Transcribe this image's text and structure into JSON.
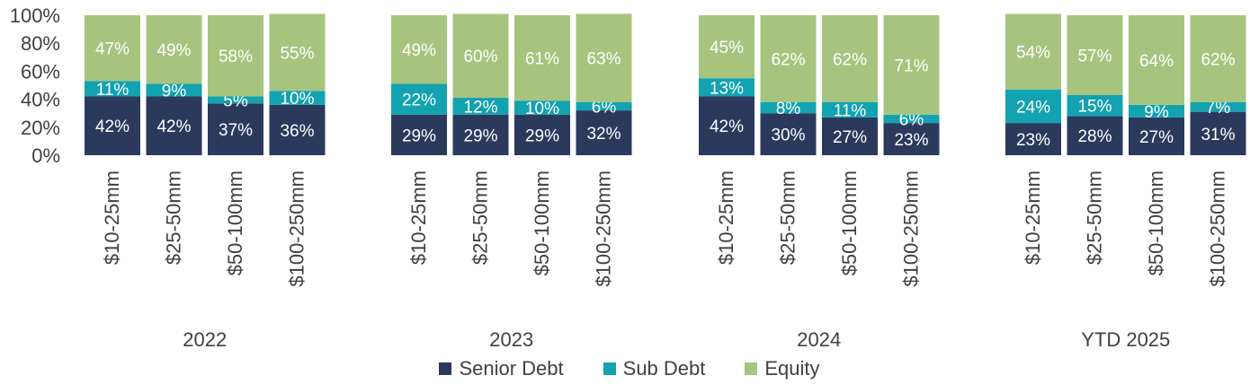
{
  "chart_data": {
    "type": "bar",
    "stacked": true,
    "groups": [
      "2022",
      "2023",
      "2024",
      "YTD 2025"
    ],
    "categories": [
      "$10-25mm",
      "$25-50mm",
      "$50-100mm",
      "$100-250mm"
    ],
    "series": [
      {
        "name": "Senior Debt",
        "color": "#2b3a5c",
        "values": [
          [
            42,
            42,
            37,
            36
          ],
          [
            29,
            29,
            29,
            32
          ],
          [
            42,
            30,
            27,
            23
          ],
          [
            23,
            28,
            27,
            31
          ]
        ]
      },
      {
        "name": "Sub Debt",
        "color": "#13a2b0",
        "values": [
          [
            11,
            9,
            5,
            10
          ],
          [
            22,
            12,
            10,
            6
          ],
          [
            13,
            8,
            11,
            6
          ],
          [
            24,
            15,
            9,
            7
          ]
        ]
      },
      {
        "name": "Equity",
        "color": "#a6c47e",
        "values": [
          [
            47,
            49,
            58,
            55
          ],
          [
            49,
            60,
            61,
            63
          ],
          [
            45,
            62,
            62,
            71
          ],
          [
            54,
            57,
            64,
            62
          ]
        ]
      }
    ],
    "ylim": [
      0,
      100
    ],
    "yticks": [
      "0%",
      "20%",
      "40%",
      "60%",
      "80%",
      "100%"
    ],
    "value_suffix": "%",
    "legend_position": "bottom",
    "grid": false
  }
}
